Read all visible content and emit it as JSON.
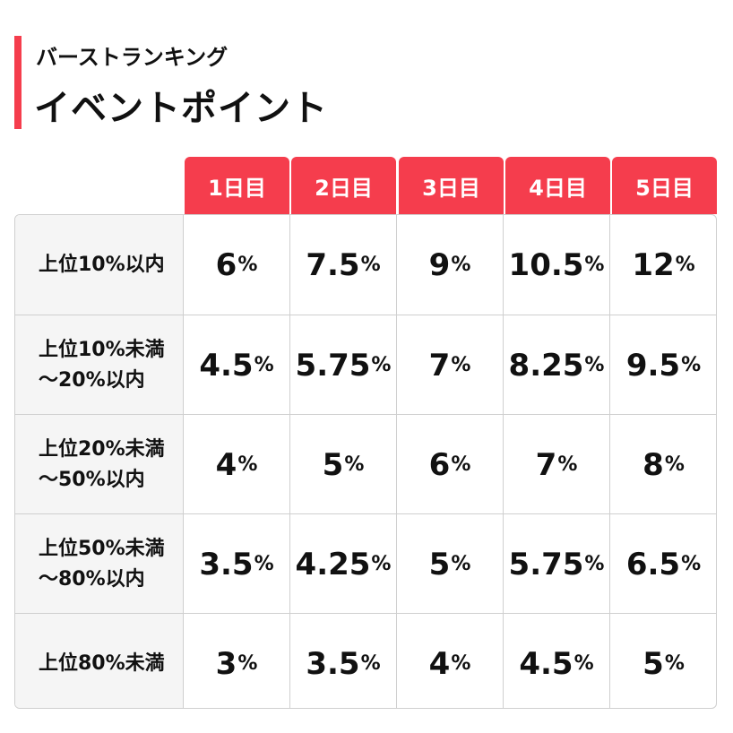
{
  "header": {
    "subtitle": "バーストランキング",
    "title": "イベントポイント",
    "accent_color": "#f53d4d"
  },
  "days": [
    "1日目",
    "2日目",
    "3日目",
    "4日目",
    "5日目"
  ],
  "unit": "%",
  "rows": [
    {
      "label": "上位10%以内",
      "values": [
        "6",
        "7.5",
        "9",
        "10.5",
        "12"
      ]
    },
    {
      "label": "上位10%未満\n～20%以内",
      "values": [
        "4.5",
        "5.75",
        "7",
        "8.25",
        "9.5"
      ]
    },
    {
      "label": "上位20%未満\n～50%以内",
      "values": [
        "4",
        "5",
        "6",
        "7",
        "8"
      ]
    },
    {
      "label": "上位50%未満\n～80%以内",
      "values": [
        "3.5",
        "4.25",
        "5",
        "5.75",
        "6.5"
      ]
    },
    {
      "label": "上位80%未満",
      "values": [
        "3",
        "3.5",
        "4",
        "4.5",
        "5"
      ]
    }
  ]
}
